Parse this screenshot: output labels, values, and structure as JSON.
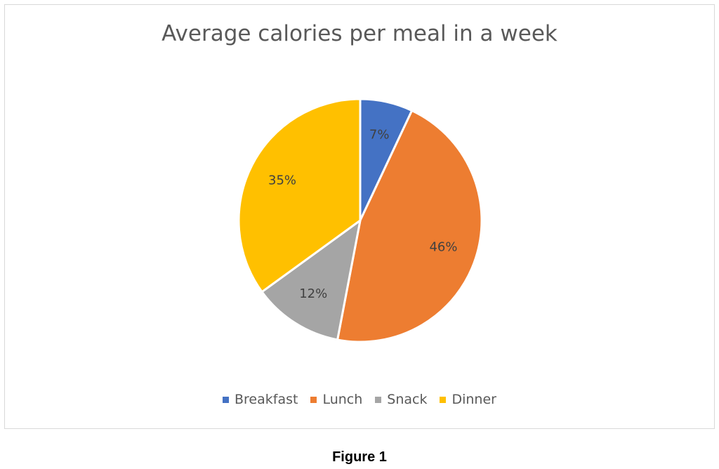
{
  "chart_data": {
    "type": "pie",
    "title": "Average calories per meal in a week",
    "categories": [
      "Breakfast",
      "Lunch",
      "Snack",
      "Dinner"
    ],
    "values": [
      7,
      46,
      12,
      35
    ],
    "labels": [
      "7%",
      "46%",
      "12%",
      "35%"
    ],
    "colors": [
      "#4472C4",
      "#ED7D31",
      "#A5A5A5",
      "#FFC000"
    ],
    "legend_position": "bottom"
  },
  "caption": "Figure 1"
}
